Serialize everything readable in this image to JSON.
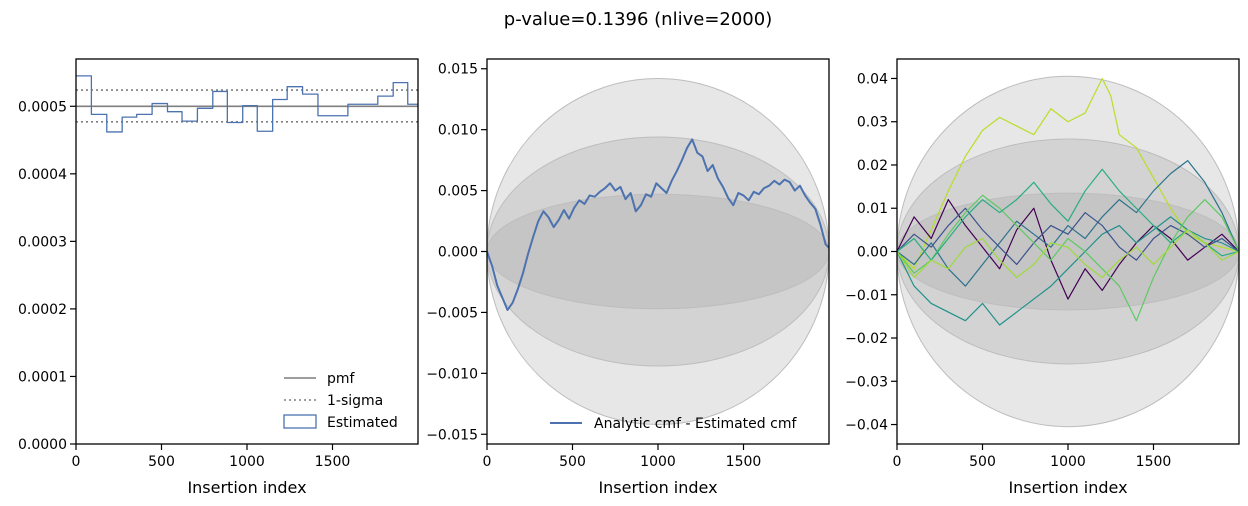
{
  "figure": {
    "suptitle": "p-value=0.1396 (nlive=2000)"
  },
  "colors": {
    "estimated": "#4c72b0",
    "pmf": "#7f7f7f",
    "band_light": "#e3e3e3",
    "band_mid": "#cfcfcf",
    "band_dark": "#c2c2c2"
  },
  "chart_data": [
    {
      "type": "line",
      "panel": "pmf",
      "xlabel": "Insertion index",
      "ylabel": "",
      "xlim": [
        0,
        2000
      ],
      "ylim": [
        0,
        0.00057
      ],
      "xticks": [
        "0",
        "500",
        "1000",
        "1500"
      ],
      "yticks": [
        "0.0000",
        "0.0001",
        "0.0002",
        "0.0003",
        "0.0004",
        "0.0005"
      ],
      "legend": {
        "placement": "lower-right",
        "entries": [
          "pmf",
          "1-sigma",
          "Estimated"
        ]
      },
      "series": [
        {
          "name": "pmf",
          "style": "solid",
          "x": [
            0,
            2000
          ],
          "y": [
            0.0005,
            0.0005
          ]
        },
        {
          "name": "1-sigma",
          "style": "dotted",
          "x": [
            0,
            2000
          ],
          "y": [
            0.000524,
            0.000524
          ]
        },
        {
          "name": "1-sigma",
          "style": "dotted",
          "x": [
            0,
            2000
          ],
          "y": [
            0.000477,
            0.000477
          ]
        },
        {
          "name": "Estimated",
          "style": "step",
          "edges": [
            0,
            90,
            180,
            270,
            355,
            445,
            535,
            620,
            710,
            800,
            885,
            975,
            1060,
            1150,
            1235,
            1325,
            1415,
            1500,
            1590,
            1680,
            1765,
            1855,
            1940,
            2000
          ],
          "values": [
            0.000545,
            0.000488,
            0.000462,
            0.000484,
            0.000488,
            0.000504,
            0.000492,
            0.000478,
            0.000497,
            0.000522,
            0.000476,
            0.000501,
            0.000463,
            0.00051,
            0.000529,
            0.000518,
            0.000486,
            0.000486,
            0.000503,
            0.000503,
            0.000515,
            0.000535,
            0.000503
          ]
        }
      ]
    },
    {
      "type": "line",
      "panel": "cmf-difference",
      "xlabel": "Insertion index",
      "ylabel": "",
      "xlim": [
        0,
        2000
      ],
      "ylim": [
        -0.0158,
        0.0158
      ],
      "xticks": [
        "0",
        "500",
        "1000",
        "1500"
      ],
      "yticks": [
        "−0.015",
        "−0.010",
        "−0.005",
        "0.000",
        "0.005",
        "0.010",
        "0.015"
      ],
      "legend": {
        "placement": "lower-right",
        "entries": [
          "Analytic cmf - Estimated cmf"
        ]
      },
      "bands": [
        0.0142,
        0.0094,
        0.0047
      ],
      "series": [
        {
          "name": "Analytic cmf - Estimated cmf",
          "x": [
            0,
            30,
            60,
            90,
            120,
            150,
            180,
            210,
            240,
            270,
            300,
            330,
            360,
            390,
            420,
            450,
            480,
            510,
            540,
            570,
            600,
            630,
            660,
            690,
            720,
            750,
            780,
            810,
            840,
            870,
            900,
            930,
            960,
            990,
            1020,
            1050,
            1080,
            1110,
            1140,
            1170,
            1200,
            1230,
            1260,
            1290,
            1320,
            1350,
            1380,
            1410,
            1440,
            1470,
            1500,
            1530,
            1560,
            1590,
            1620,
            1650,
            1680,
            1710,
            1740,
            1770,
            1800,
            1830,
            1860,
            1890,
            1920,
            1950,
            1980,
            2000
          ],
          "y": [
            0.0,
            -0.0012,
            -0.0028,
            -0.0038,
            -0.0048,
            -0.0042,
            -0.0031,
            -0.0018,
            -0.0002,
            0.0012,
            0.0025,
            0.0033,
            0.0028,
            0.002,
            0.0026,
            0.0034,
            0.0027,
            0.0036,
            0.0042,
            0.0039,
            0.0046,
            0.0045,
            0.0049,
            0.0052,
            0.0056,
            0.005,
            0.0053,
            0.0043,
            0.0048,
            0.0033,
            0.0038,
            0.0047,
            0.0045,
            0.0056,
            0.0052,
            0.0048,
            0.0058,
            0.0066,
            0.0075,
            0.0085,
            0.0092,
            0.0081,
            0.0078,
            0.0066,
            0.0071,
            0.006,
            0.0053,
            0.0044,
            0.0038,
            0.0048,
            0.0046,
            0.0042,
            0.0049,
            0.0047,
            0.0052,
            0.0054,
            0.0058,
            0.0055,
            0.0059,
            0.0057,
            0.005,
            0.0054,
            0.0046,
            0.004,
            0.0035,
            0.0022,
            0.0006,
            0.0003
          ]
        }
      ]
    },
    {
      "type": "line",
      "panel": "cmf-realisations",
      "xlabel": "Insertion index",
      "ylabel": "",
      "xlim": [
        0,
        2000
      ],
      "ylim": [
        -0.0445,
        0.0445
      ],
      "xticks": [
        "0",
        "500",
        "1000",
        "1500"
      ],
      "yticks": [
        "−0.04",
        "−0.03",
        "−0.02",
        "−0.01",
        "0.00",
        "0.01",
        "0.02",
        "0.03",
        "0.04"
      ],
      "legend": null,
      "bands": [
        0.0405,
        0.026,
        0.0135
      ],
      "series": [
        {
          "color": "#b8de29",
          "x": [
            0,
            100,
            200,
            300,
            400,
            500,
            600,
            700,
            800,
            900,
            1000,
            1100,
            1150,
            1200,
            1250,
            1300,
            1400,
            1500,
            1600,
            1700,
            1800,
            1900,
            2000
          ],
          "y": [
            0.0,
            -0.004,
            0.005,
            0.014,
            0.022,
            0.028,
            0.031,
            0.029,
            0.027,
            0.033,
            0.03,
            0.032,
            0.036,
            0.04,
            0.036,
            0.027,
            0.024,
            0.017,
            0.01,
            0.004,
            0.002,
            0.001,
            0.0
          ]
        },
        {
          "color": "#440154",
          "x": [
            0,
            100,
            200,
            300,
            400,
            500,
            600,
            700,
            800,
            900,
            1000,
            1100,
            1200,
            1300,
            1400,
            1500,
            1600,
            1700,
            1800,
            1900,
            2000
          ],
          "y": [
            0.0,
            0.008,
            0.003,
            0.012,
            0.006,
            0.001,
            -0.004,
            0.005,
            0.01,
            -0.002,
            -0.011,
            -0.004,
            -0.009,
            -0.003,
            0.002,
            0.006,
            0.003,
            -0.002,
            0.001,
            0.004,
            0.0
          ]
        },
        {
          "color": "#21918c",
          "x": [
            0,
            100,
            200,
            300,
            400,
            500,
            600,
            700,
            800,
            900,
            1000,
            1100,
            1200,
            1300,
            1400,
            1500,
            1600,
            1700,
            1800,
            1900,
            2000
          ],
          "y": [
            0.0,
            -0.008,
            -0.012,
            -0.014,
            -0.016,
            -0.012,
            -0.017,
            -0.014,
            -0.011,
            -0.008,
            -0.004,
            0.0,
            0.004,
            0.006,
            0.002,
            0.005,
            0.008,
            0.005,
            0.003,
            0.002,
            0.0
          ]
        },
        {
          "color": "#2c728e",
          "x": [
            0,
            100,
            200,
            300,
            400,
            500,
            600,
            700,
            800,
            900,
            1000,
            1100,
            1200,
            1300,
            1400,
            1500,
            1600,
            1700,
            1800,
            1900,
            2000
          ],
          "y": [
            0.0,
            -0.003,
            0.002,
            -0.004,
            -0.008,
            -0.003,
            0.002,
            0.007,
            0.004,
            0.001,
            0.006,
            0.003,
            0.008,
            0.012,
            0.009,
            0.014,
            0.018,
            0.021,
            0.016,
            0.009,
            0.0
          ]
        },
        {
          "color": "#3b528b",
          "x": [
            0,
            100,
            200,
            300,
            400,
            500,
            600,
            700,
            800,
            900,
            1000,
            1100,
            1200,
            1300,
            1400,
            1500,
            1600,
            1700,
            1800,
            1900,
            2000
          ],
          "y": [
            0.0,
            0.004,
            0.001,
            0.006,
            0.01,
            0.005,
            0.001,
            -0.003,
            0.002,
            0.006,
            0.004,
            0.009,
            0.006,
            0.001,
            -0.002,
            0.003,
            0.006,
            0.004,
            0.001,
            0.003,
            0.0
          ]
        },
        {
          "color": "#5ec962",
          "x": [
            0,
            100,
            200,
            300,
            400,
            500,
            600,
            700,
            800,
            900,
            1000,
            1100,
            1200,
            1300,
            1400,
            1500,
            1600,
            1700,
            1800,
            1900,
            2000
          ],
          "y": [
            0.0,
            -0.005,
            -0.002,
            0.004,
            0.009,
            0.013,
            0.01,
            0.006,
            0.002,
            -0.002,
            0.003,
            0.0,
            -0.004,
            -0.008,
            -0.016,
            -0.006,
            0.002,
            0.008,
            0.012,
            0.008,
            0.0
          ]
        },
        {
          "color": "#28ae80",
          "x": [
            0,
            100,
            200,
            300,
            400,
            500,
            600,
            700,
            800,
            900,
            1000,
            1100,
            1200,
            1300,
            1400,
            1500,
            1600,
            1700,
            1800,
            1900,
            2000
          ],
          "y": [
            0.0,
            0.003,
            -0.002,
            0.003,
            0.008,
            0.012,
            0.009,
            0.012,
            0.016,
            0.011,
            0.007,
            0.014,
            0.019,
            0.014,
            0.01,
            0.006,
            0.002,
            0.005,
            0.002,
            -0.001,
            0.0
          ]
        },
        {
          "color": "#9fda3a",
          "x": [
            0,
            100,
            200,
            300,
            400,
            500,
            600,
            700,
            800,
            900,
            1000,
            1100,
            1200,
            1300,
            1400,
            1500,
            1600,
            1700,
            1800,
            1900,
            2000
          ],
          "y": [
            0.0,
            -0.006,
            -0.002,
            -0.004,
            0.001,
            0.003,
            -0.002,
            -0.006,
            -0.003,
            0.002,
            0.001,
            -0.003,
            -0.006,
            -0.002,
            0.001,
            -0.003,
            0.001,
            0.005,
            0.002,
            -0.002,
            0.0
          ]
        }
      ]
    }
  ]
}
